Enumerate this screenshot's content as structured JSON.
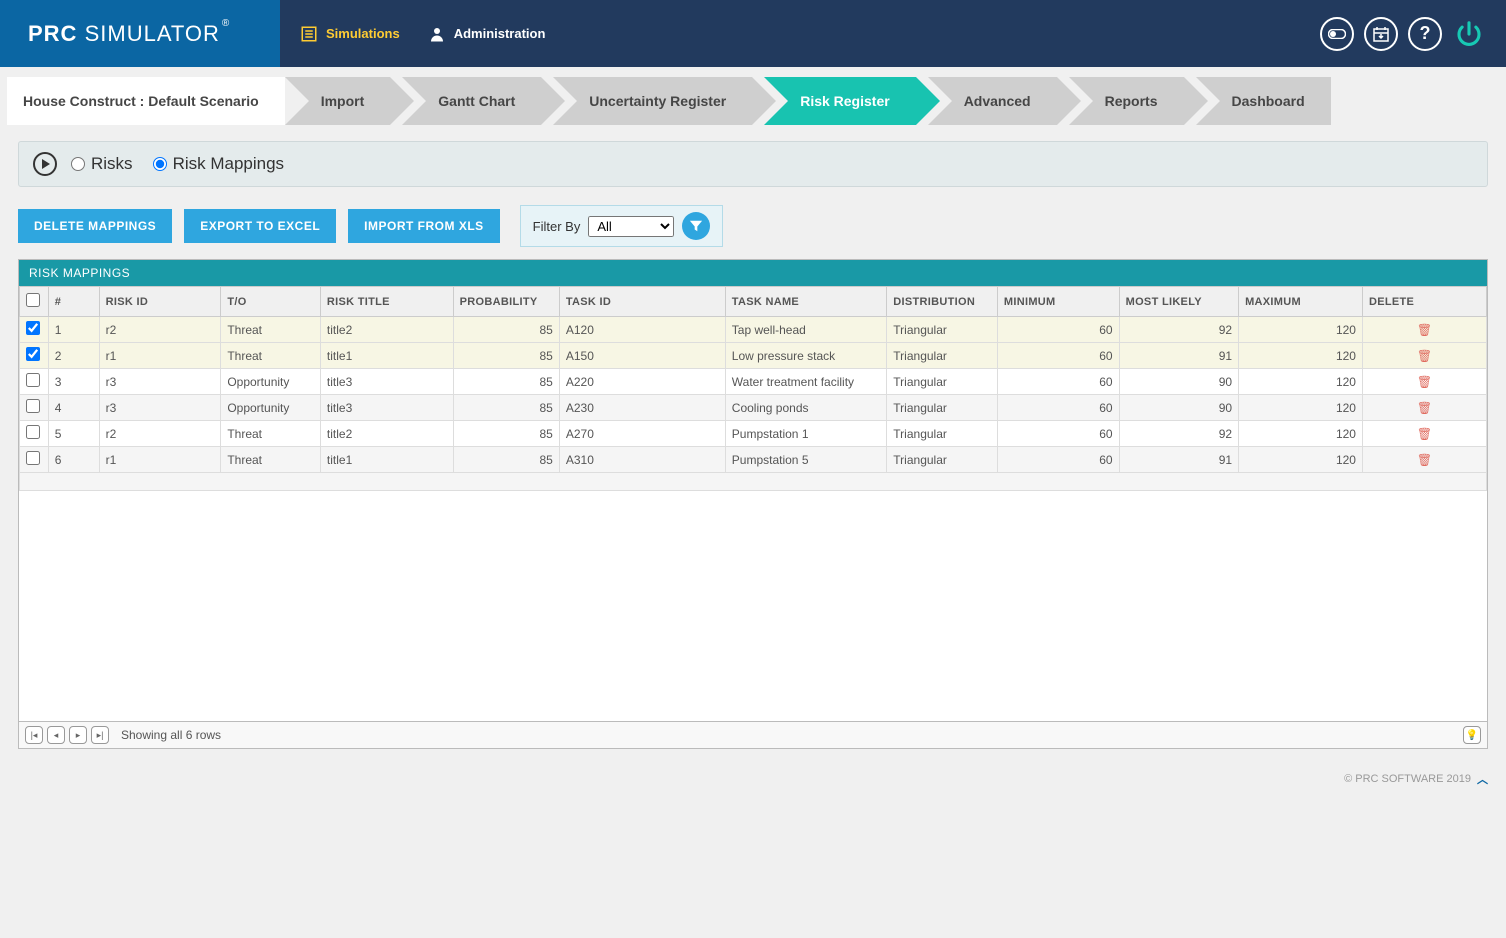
{
  "brand": {
    "p1": "PRC",
    "p2": "SIMULATOR"
  },
  "topnav": {
    "simulations": "Simulations",
    "administration": "Administration"
  },
  "tabs": {
    "t0": "House Construct   :   Default Scenario",
    "t1": "Import",
    "t2": "Gantt Chart",
    "t3": "Uncertainty Register",
    "t4": "Risk Register",
    "t5": "Advanced",
    "t6": "Reports",
    "t7": "Dashboard",
    "active_index": 4
  },
  "subtabs": {
    "risks": "Risks",
    "risk_mappings": "Risk Mappings",
    "selected": "risk_mappings"
  },
  "actions": {
    "delete": "DELETE MAPPINGS",
    "export": "EXPORT TO EXCEL",
    "import": "IMPORT FROM XLS"
  },
  "filter": {
    "label": "Filter By",
    "selected": "All",
    "options": [
      "All"
    ]
  },
  "grid": {
    "title": "RISK MAPPINGS",
    "columns": {
      "num": "#",
      "riskid": "RISK ID",
      "to": "T/O",
      "risktitle": "RISK TITLE",
      "prob": "PROBABILITY",
      "taskid": "TASK ID",
      "taskname": "TASK NAME",
      "dist": "DISTRIBUTION",
      "min": "MINIMUM",
      "ml": "MOST LIKELY",
      "max": "MAXIMUM",
      "del": "DELETE"
    },
    "rows": [
      {
        "sel": true,
        "n": "1",
        "riskid": "r2",
        "to": "Threat",
        "title": "title2",
        "prob": "85",
        "taskid": "A120",
        "taskname": "Tap well-head",
        "dist": "Triangular",
        "min": "60",
        "ml": "92",
        "max": "120"
      },
      {
        "sel": true,
        "n": "2",
        "riskid": "r1",
        "to": "Threat",
        "title": "title1",
        "prob": "85",
        "taskid": "A150",
        "taskname": "Low pressure stack",
        "dist": "Triangular",
        "min": "60",
        "ml": "91",
        "max": "120"
      },
      {
        "sel": false,
        "n": "3",
        "riskid": "r3",
        "to": "Opportunity",
        "title": "title3",
        "prob": "85",
        "taskid": "A220",
        "taskname": "Water treatment facility",
        "dist": "Triangular",
        "min": "60",
        "ml": "90",
        "max": "120"
      },
      {
        "sel": false,
        "n": "4",
        "riskid": "r3",
        "to": "Opportunity",
        "title": "title3",
        "prob": "85",
        "taskid": "A230",
        "taskname": "Cooling ponds",
        "dist": "Triangular",
        "min": "60",
        "ml": "90",
        "max": "120"
      },
      {
        "sel": false,
        "n": "5",
        "riskid": "r2",
        "to": "Threat",
        "title": "title2",
        "prob": "85",
        "taskid": "A270",
        "taskname": "Pumpstation 1",
        "dist": "Triangular",
        "min": "60",
        "ml": "92",
        "max": "120"
      },
      {
        "sel": false,
        "n": "6",
        "riskid": "r1",
        "to": "Threat",
        "title": "title1",
        "prob": "85",
        "taskid": "A310",
        "taskname": "Pumpstation 5",
        "dist": "Triangular",
        "min": "60",
        "ml": "91",
        "max": "120"
      }
    ],
    "footer_text": "Showing all 6 rows"
  },
  "footer": {
    "copyright": "© PRC SOFTWARE 2019"
  },
  "colors": {
    "topbar": "#223a5e",
    "logo": "#0b66a3",
    "accent_yellow": "#ffcc33",
    "tab_inactive": "#cfcfcf",
    "tab_active": "#18c3b0",
    "subtabs_bg": "#e4ebec",
    "button": "#2fa6df",
    "filter_bg": "#e7f3f7",
    "grid_header": "#1999a6",
    "row_selected": "#f7f6e4",
    "delete_icon": "#e06a5e",
    "power": "#17c9b4"
  }
}
